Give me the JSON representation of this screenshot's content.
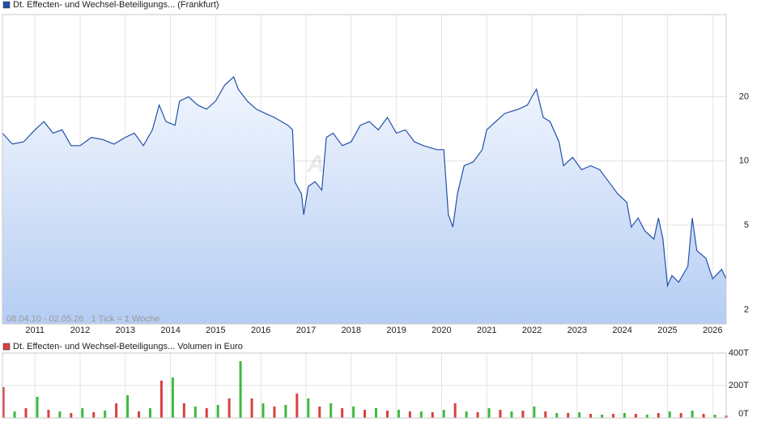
{
  "chart_data": [
    {
      "type": "line",
      "title": "Dt. Effecten- und Wechsel-Beteiligungs... (Frankfurt)",
      "note": "08.04.10 - 02.05.26   1 Tick = 1 Woche",
      "watermark": "ARIVA.DE",
      "color": "#2150a8",
      "log_scale": true,
      "grid": true,
      "x": [
        2010.28,
        2010.5,
        2010.75,
        2011.0,
        2011.2,
        2011.4,
        2011.6,
        2011.8,
        2012.0,
        2012.25,
        2012.5,
        2012.75,
        2013.0,
        2013.2,
        2013.4,
        2013.6,
        2013.75,
        2013.9,
        2014.1,
        2014.2,
        2014.4,
        2014.6,
        2014.8,
        2015.0,
        2015.2,
        2015.4,
        2015.5,
        2015.7,
        2015.9,
        2016.1,
        2016.3,
        2016.6,
        2016.7,
        2016.75,
        2016.9,
        2016.95,
        2017.05,
        2017.2,
        2017.35,
        2017.45,
        2017.6,
        2017.8,
        2018.0,
        2018.2,
        2018.4,
        2018.6,
        2018.8,
        2019.0,
        2019.2,
        2019.4,
        2019.6,
        2019.9,
        2020.05,
        2020.15,
        2020.25,
        2020.35,
        2020.5,
        2020.7,
        2020.9,
        2021.0,
        2021.2,
        2021.4,
        2021.7,
        2021.9,
        2022.0,
        2022.1,
        2022.25,
        2022.4,
        2022.6,
        2022.7,
        2022.9,
        2023.1,
        2023.3,
        2023.5,
        2023.7,
        2023.9,
        2024.1,
        2024.2,
        2024.35,
        2024.5,
        2024.7,
        2024.8,
        2024.9,
        2025.0,
        2025.1,
        2025.25,
        2025.45,
        2025.55,
        2025.65,
        2025.85,
        2026.0,
        2026.2,
        2026.3
      ],
      "values": [
        13.5,
        12.0,
        12.3,
        14.0,
        15.3,
        13.5,
        14.0,
        11.8,
        11.8,
        12.9,
        12.6,
        12.0,
        12.9,
        13.5,
        11.8,
        14.0,
        18.3,
        15.3,
        14.7,
        19.1,
        20,
        18.3,
        17.5,
        19.1,
        22.7,
        24.8,
        21.7,
        19.1,
        17.5,
        16.7,
        16.0,
        14.7,
        14.0,
        8.0,
        7.0,
        5.6,
        7.6,
        8.0,
        7.3,
        12.9,
        13.5,
        11.8,
        12.3,
        14.7,
        15.3,
        14.0,
        16.0,
        13.5,
        14.0,
        12.3,
        11.8,
        11.3,
        11.3,
        5.6,
        4.9,
        7.0,
        9.5,
        9.9,
        11.3,
        14.0,
        15.3,
        16.7,
        17.5,
        18.3,
        20,
        21.7,
        16.0,
        15.3,
        12.3,
        9.5,
        10.4,
        9.1,
        9.5,
        9.1,
        8.0,
        7.0,
        6.4,
        4.9,
        5.4,
        4.7,
        4.3,
        5.4,
        4.3,
        2.6,
        2.9,
        2.7,
        3.2,
        5.4,
        3.8,
        3.5,
        2.8,
        3.1,
        2.8
      ],
      "xlim": [
        2010.28,
        2026.3
      ],
      "xticks": [
        2011,
        2012,
        2013,
        2014,
        2015,
        2016,
        2017,
        2018,
        2019,
        2020,
        2021,
        2022,
        2023,
        2024,
        2025,
        2026
      ],
      "ylim": [
        1.72,
        48.6
      ],
      "yticks": [
        2,
        5,
        10,
        20
      ]
    },
    {
      "type": "bar",
      "title": "Dt. Effecten- und Wechsel-Beteiligungs... Volumen in Euro",
      "colors": [
        "#d94040",
        "#3fb83f"
      ],
      "x": [
        2010.3,
        2010.55,
        2010.8,
        2011.05,
        2011.3,
        2011.55,
        2011.8,
        2012.05,
        2012.3,
        2012.55,
        2012.8,
        2013.05,
        2013.3,
        2013.55,
        2013.8,
        2014.05,
        2014.3,
        2014.55,
        2014.8,
        2015.05,
        2015.3,
        2015.55,
        2015.8,
        2016.05,
        2016.3,
        2016.55,
        2016.8,
        2017.05,
        2017.3,
        2017.55,
        2017.8,
        2018.05,
        2018.3,
        2018.55,
        2018.8,
        2019.05,
        2019.3,
        2019.55,
        2019.8,
        2020.05,
        2020.3,
        2020.55,
        2020.8,
        2021.05,
        2021.3,
        2021.55,
        2021.8,
        2022.05,
        2022.3,
        2022.55,
        2022.8,
        2023.05,
        2023.3,
        2023.55,
        2023.8,
        2024.05,
        2024.3,
        2024.55,
        2024.8,
        2025.05,
        2025.3,
        2025.55,
        2025.8,
        2026.05,
        2026.3
      ],
      "values": [
        190000,
        40000,
        60000,
        130000,
        50000,
        40000,
        30000,
        60000,
        35000,
        45000,
        90000,
        140000,
        40000,
        60000,
        230000,
        250000,
        90000,
        70000,
        60000,
        80000,
        120000,
        350000,
        120000,
        90000,
        70000,
        80000,
        150000,
        120000,
        70000,
        90000,
        60000,
        70000,
        50000,
        60000,
        45000,
        50000,
        40000,
        40000,
        35000,
        50000,
        90000,
        40000,
        35000,
        60000,
        50000,
        40000,
        45000,
        70000,
        40000,
        30000,
        30000,
        35000,
        25000,
        20000,
        25000,
        30000,
        25000,
        20000,
        30000,
        40000,
        30000,
        45000,
        25000,
        20000,
        15000
      ],
      "xlim": [
        2010.28,
        2026.3
      ],
      "ylim": [
        0,
        400000
      ],
      "yticks": [
        {
          "value": 0,
          "label": "0T"
        },
        {
          "value": 200000,
          "label": "200T"
        },
        {
          "value": 400000,
          "label": "400T"
        }
      ]
    }
  ]
}
